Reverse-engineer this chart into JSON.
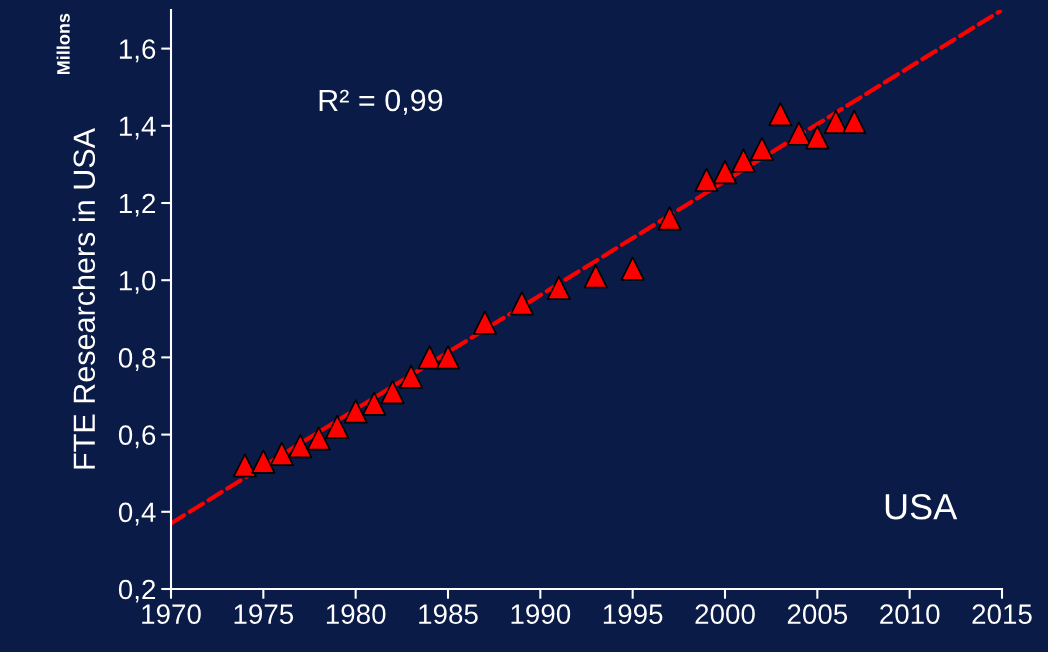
{
  "chart_data": {
    "type": "scatter",
    "ylabel": "FTE Researchers in USA",
    "annotations": [
      "Millons",
      "R² = 0,99",
      "USA"
    ],
    "series": [
      {
        "color": "#ff0000",
        "marker": "triangle",
        "x": [
          1974,
          1975,
          1976,
          1977,
          1978,
          1979,
          1980,
          1981,
          1982,
          1983,
          1984,
          1985,
          1987,
          1989,
          1991,
          1993,
          1995,
          1997,
          1999,
          2000,
          2001,
          2002,
          2003,
          2004,
          2005,
          2006,
          2007
        ],
        "values": [
          0.52,
          0.53,
          0.55,
          0.57,
          0.59,
          0.62,
          0.66,
          0.68,
          0.71,
          0.75,
          0.8,
          0.8,
          0.89,
          0.94,
          0.98,
          1.01,
          1.03,
          1.16,
          1.26,
          1.28,
          1.31,
          1.34,
          1.43,
          1.38,
          1.37,
          1.41,
          1.41
        ]
      },
      {
        "type": "line",
        "color": "#ff0000",
        "line_style": "dashed",
        "marker": "none",
        "x": [
          1970,
          2015
        ],
        "values": [
          0.37,
          1.7
        ]
      }
    ],
    "xlim": [
      1970,
      2015
    ],
    "xticks": [
      1970,
      1975,
      1980,
      1985,
      1990,
      1995,
      2000,
      2005,
      2010,
      2015
    ],
    "ylim": [
      0.2,
      1.7
    ],
    "yticks": [
      {
        "value": 0.2,
        "label": "0,2"
      },
      {
        "value": 0.4,
        "label": "0,4"
      },
      {
        "value": 0.6,
        "label": "0,6"
      },
      {
        "value": 0.8,
        "label": "0,8"
      },
      {
        "value": 1.0,
        "label": "1,0"
      },
      {
        "value": 1.2,
        "label": "1,2"
      },
      {
        "value": 1.4,
        "label": "1,4"
      },
      {
        "value": 1.6,
        "label": "1,6"
      }
    ],
    "grid": false,
    "legend": false
  }
}
